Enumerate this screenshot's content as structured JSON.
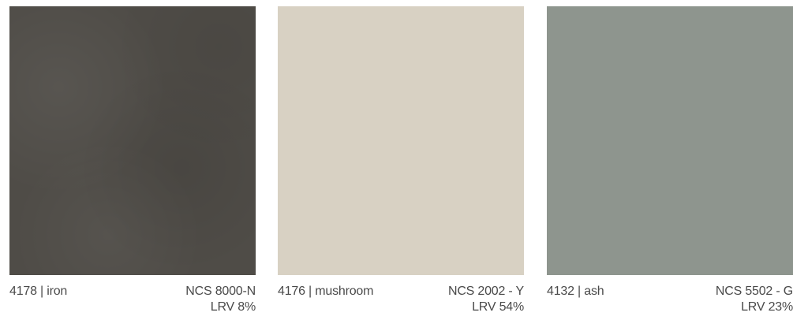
{
  "swatches": [
    {
      "code": "4178",
      "name": "iron",
      "label": "4178 | iron",
      "ncs": "NCS 8000-N",
      "lrv": "LRV 8%",
      "color": "#4f4c47",
      "textured": true
    },
    {
      "code": "4176",
      "name": "mushroom",
      "label": "4176 | mushroom",
      "ncs": "NCS 2002 - Y",
      "lrv": "LRV 54%",
      "color": "#d8d1c3",
      "textured": false
    },
    {
      "code": "4132",
      "name": "ash",
      "label": "4132 | ash",
      "ncs": "NCS 5502 - G",
      "lrv": "LRV 23%",
      "color": "#8e958e",
      "textured": false
    }
  ],
  "colors": {
    "text": "#4a4a4a",
    "background": "#ffffff"
  }
}
